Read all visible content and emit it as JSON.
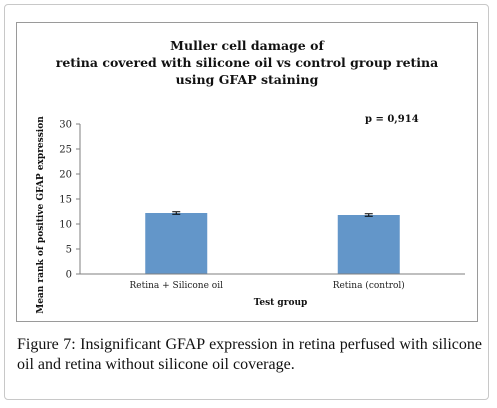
{
  "caption": {
    "label": "Figure 7:",
    "text": " Insignificant GFAP expression in retina perfused with silicone oil and retina without silicone oil coverage."
  },
  "chart_data": {
    "type": "bar",
    "title_lines": [
      "Muller cell damage of",
      "retina covered with silicone oil vs control group retina",
      "using GFAP staining"
    ],
    "categories": [
      "Retina + Silicone oil",
      "Retina (control)"
    ],
    "values": [
      12.2,
      11.8
    ],
    "error": [
      0.25,
      0.25
    ],
    "xlabel": "Test group",
    "ylabel": "Mean rank of positive GFAP expression",
    "ylim": [
      0,
      30
    ],
    "yticks": [
      0,
      5,
      10,
      15,
      20,
      25,
      30
    ],
    "annotation": "p = 0,914",
    "grid": false,
    "legend": "none",
    "bar_color": "#6396c9"
  }
}
